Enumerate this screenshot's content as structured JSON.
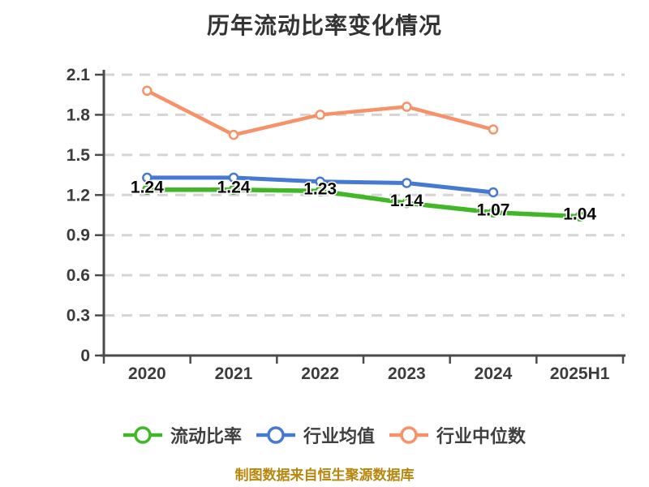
{
  "chart_data": {
    "type": "line",
    "title": "历年流动比率变化情况",
    "categories": [
      "2020",
      "2021",
      "2022",
      "2023",
      "2024",
      "2025H1"
    ],
    "series": [
      {
        "name": "流动比率",
        "color": "#41B728",
        "values": [
          1.24,
          1.24,
          1.23,
          1.14,
          1.07,
          1.04
        ],
        "value_labels": true
      },
      {
        "name": "行业均值",
        "color": "#4679D2",
        "values": [
          1.33,
          1.33,
          1.3,
          1.29,
          1.22,
          null
        ],
        "value_labels": false
      },
      {
        "name": "行业中位数",
        "color": "#F79168",
        "values": [
          1.98,
          1.65,
          1.8,
          1.86,
          1.69,
          null
        ],
        "value_labels": false
      }
    ],
    "ylim": [
      0,
      2.1
    ],
    "yticks": [
      0,
      0.3,
      0.6,
      0.9,
      1.2,
      1.5,
      1.8,
      2.1
    ],
    "xlabel": "",
    "ylabel": "",
    "grid": "horizontal-dashed",
    "legend_position": "bottom",
    "marker": "hollow-circle"
  },
  "footer": {
    "note": "制图数据来自恒生聚源数据库",
    "color": "#B8860B"
  },
  "ui_colors": {
    "background": "#FFFFFF",
    "title_text": "#333333",
    "axis": "#4A4A4A",
    "grid": "#D5D5D5",
    "tick_label": "#3C3C3C",
    "value_label": "#0A0A0A",
    "legend_text": "#3F3F3F"
  }
}
